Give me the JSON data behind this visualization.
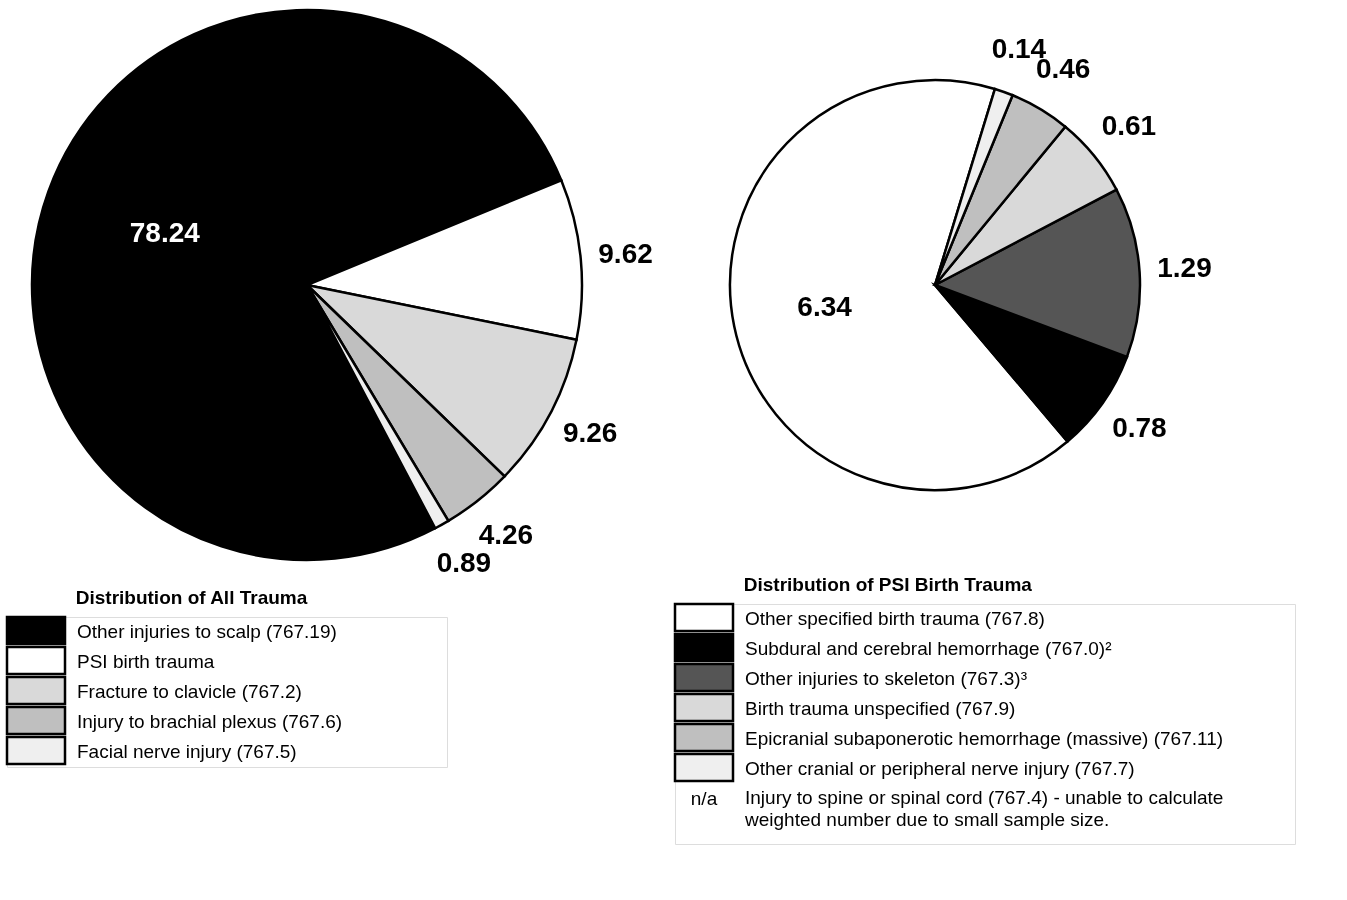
{
  "chart_data": [
    {
      "type": "pie",
      "legend_title": "Distribution of All Trauma",
      "legend": "bottom",
      "data_labels": true,
      "categories": [
        "Other injuries to scalp (767.19)",
        "PSI birth trauma",
        "Fracture to clavicle (767.2)",
        "Injury to brachial plexus (767.6)",
        "Facial nerve injury (767.5)"
      ],
      "values": [
        78.24,
        9.62,
        9.26,
        4.26,
        0.89
      ],
      "colors": [
        "#000000",
        "#ffffff",
        "#d9d9d9",
        "#bfbfbf",
        "#efefef"
      ]
    },
    {
      "type": "pie",
      "legend_title": "Distribution of PSI Birth Trauma",
      "legend": "bottom",
      "data_labels": true,
      "categories": [
        "Other specified birth trauma (767.8)",
        "Subdural and cerebral hemorrhage (767.0)²",
        "Other injuries to skeleton (767.3)³",
        "Birth trauma unspecified (767.9)",
        "Epicranial subaponerotic hemorrhage (massive) (767.11)",
        "Other cranial or peripheral nerve injury (767.7)"
      ],
      "values": [
        6.34,
        0.78,
        1.29,
        0.61,
        0.46,
        0.14
      ],
      "colors": [
        "#ffffff",
        "#000000",
        "#555555",
        "#d9d9d9",
        "#bfbfbf",
        "#efefef"
      ],
      "annotations": [
        "n/a",
        "Injury to spine or spinal cord (767.4) - unable to calculate weighted number due to small sample size."
      ]
    }
  ]
}
